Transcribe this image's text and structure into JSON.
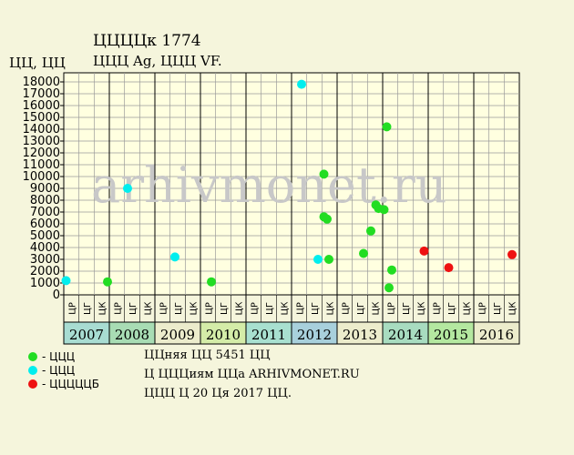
{
  "header": {
    "title": "ЦЦЦЦк 1774",
    "subtitle": "ЦЦЦ Ag, ЦЦЦ VF.",
    "y_unit": "ЦЦ, ЦЦ"
  },
  "watermark": "arhivmonet.ru",
  "legend": [
    {
      "label": "- ЦЦЦ",
      "color": "#22dd22"
    },
    {
      "label": "- ЦЦЦ",
      "color": "#00eeee"
    },
    {
      "label": "- ЦЦЦЦЦБ",
      "color": "#ee1111"
    }
  ],
  "info": {
    "line1": "ЦЦняя ЦЦ 5451 ЦЦ",
    "line2": "Ц ЦЦЦиям ЦЦа ARHIVMONET.RU",
    "line3": "ЦЦЦ Ц 20 Ця 2017 ЦЦ."
  },
  "chart_data": {
    "type": "scatter",
    "ylim": [
      0,
      18000
    ],
    "ytick_step": 1000,
    "yticks": [
      "0",
      "1000",
      "2000",
      "3000",
      "4000",
      "5000",
      "6000",
      "7000",
      "8000",
      "9000",
      "10000",
      "11000",
      "12000",
      "13000",
      "14000",
      "15000",
      "16000",
      "17000",
      "18000"
    ],
    "quarter_labels": [
      "ЦР",
      "ЦГ",
      "ЦК"
    ],
    "years": [
      {
        "label": "2007",
        "color": "#a8dcd2"
      },
      {
        "label": "2008",
        "color": "#a8dcb4"
      },
      {
        "label": "2009",
        "color": "#ececcc"
      },
      {
        "label": "2010",
        "color": "#d4eca8"
      },
      {
        "label": "2011",
        "color": "#a8e0d0"
      },
      {
        "label": "2012",
        "color": "#a8d0dc"
      },
      {
        "label": "2013",
        "color": "#ececcc"
      },
      {
        "label": "2014",
        "color": "#a8dcc0"
      },
      {
        "label": "2015",
        "color": "#b4e8a0"
      },
      {
        "label": "2016",
        "color": "#ececcc"
      }
    ],
    "x_min": 2007.0,
    "x_max": 2017.0,
    "series": [
      {
        "color": "#22dd22",
        "points": [
          {
            "x": 2007.96,
            "y": 1100
          },
          {
            "x": 2010.24,
            "y": 1100
          },
          {
            "x": 2012.71,
            "y": 10200
          },
          {
            "x": 2012.71,
            "y": 6600
          },
          {
            "x": 2012.78,
            "y": 6400
          },
          {
            "x": 2012.82,
            "y": 3000
          },
          {
            "x": 2013.58,
            "y": 3500
          },
          {
            "x": 2013.74,
            "y": 5400
          },
          {
            "x": 2013.85,
            "y": 7600
          },
          {
            "x": 2013.91,
            "y": 7300
          },
          {
            "x": 2014.03,
            "y": 7200
          },
          {
            "x": 2014.09,
            "y": 14200
          },
          {
            "x": 2014.14,
            "y": 600
          },
          {
            "x": 2014.2,
            "y": 2100
          }
        ]
      },
      {
        "color": "#00eeee",
        "points": [
          {
            "x": 2007.05,
            "y": 1200
          },
          {
            "x": 2008.4,
            "y": 9000
          },
          {
            "x": 2009.44,
            "y": 3200
          },
          {
            "x": 2012.22,
            "y": 17800
          },
          {
            "x": 2012.58,
            "y": 3000
          }
        ]
      },
      {
        "color": "#ee1111",
        "points": [
          {
            "x": 2014.91,
            "y": 3700
          },
          {
            "x": 2015.45,
            "y": 2300
          },
          {
            "x": 2016.84,
            "y": 3400
          }
        ]
      }
    ]
  }
}
